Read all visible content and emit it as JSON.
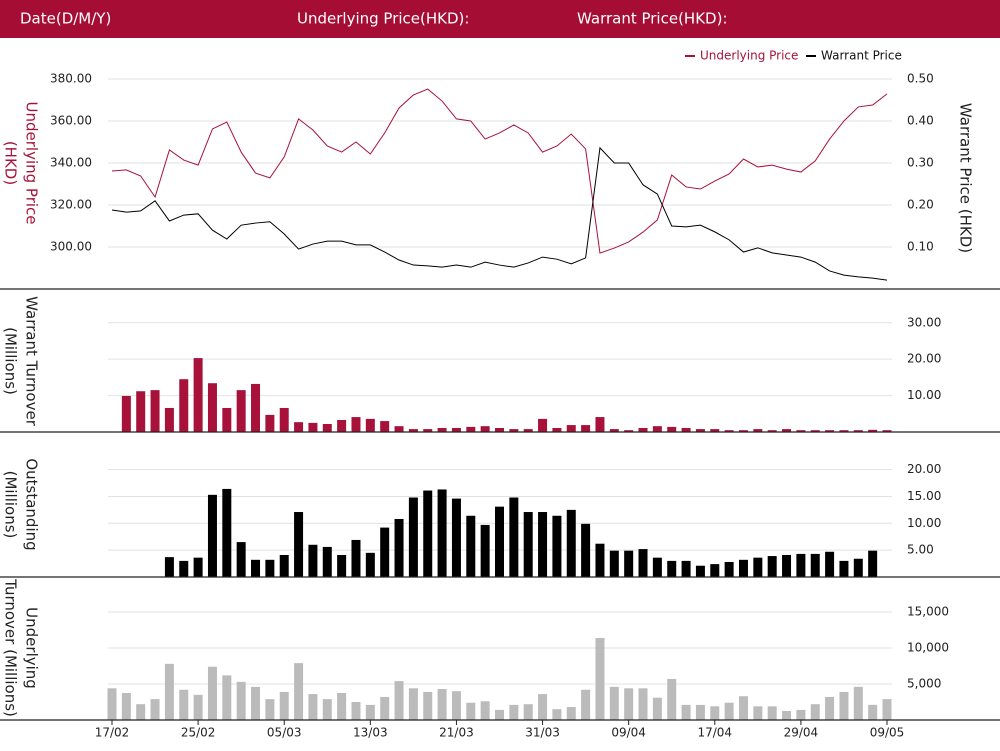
{
  "header": {
    "labels": [
      "Date(D/M/Y)",
      "Underlying Price(HKD):",
      "Warrant Price(HKD):"
    ]
  },
  "chart_data": [
    {
      "type": "line",
      "ylabel": [
        "Underlying Price",
        "(HKD)"
      ],
      "y2label": "Warrant  Price (HKD)",
      "legend": "top-right",
      "ylim": [
        280,
        400
      ],
      "yticks": [
        {
          "value": 300,
          "label": "300.00"
        },
        {
          "value": 320,
          "label": "320.00"
        },
        {
          "value": 340,
          "label": "340.00"
        },
        {
          "value": 360,
          "label": "360.00"
        },
        {
          "value": 380,
          "label": "380.00"
        }
      ],
      "y2lim": [
        0,
        0.6
      ],
      "y2ticks": [
        {
          "value": 0.1,
          "label": "0.10"
        },
        {
          "value": 0.2,
          "label": "0.20"
        },
        {
          "value": 0.3,
          "label": "0.30"
        },
        {
          "value": 0.4,
          "label": "0.40"
        },
        {
          "value": 0.5,
          "label": "0.50"
        }
      ],
      "grid": true,
      "series": [
        {
          "name": "Underlying Price",
          "color": "#a8123a",
          "axis": "y",
          "values": [
            336.2,
            336.7,
            333.8,
            323.8,
            346.2,
            341.4,
            339,
            356.2,
            359.5,
            345.2,
            335.2,
            332.9,
            342.9,
            361,
            355.7,
            348.1,
            345.2,
            350,
            344.3,
            354.3,
            366.2,
            372.4,
            375.2,
            369.5,
            361,
            360,
            351.4,
            354.3,
            358.1,
            354.3,
            345.2,
            348.1,
            353.8,
            346.7,
            297.1,
            299.5,
            302.4,
            307.1,
            312.9,
            334.3,
            328.6,
            327.6,
            331.4,
            334.8,
            341.9,
            338.1,
            339,
            337.1,
            335.7,
            341,
            351.4,
            360,
            366.7,
            367.6,
            372.9
          ]
        },
        {
          "name": "Warrant Price",
          "color": "#000000",
          "axis": "y2",
          "values": [
            0.188,
            0.183,
            0.186,
            0.21,
            0.162,
            0.176,
            0.179,
            0.14,
            0.119,
            0.152,
            0.157,
            0.16,
            0.131,
            0.095,
            0.107,
            0.114,
            0.114,
            0.105,
            0.105,
            0.088,
            0.069,
            0.057,
            0.055,
            0.052,
            0.057,
            0.052,
            0.064,
            0.057,
            0.052,
            0.062,
            0.076,
            0.071,
            0.06,
            0.074,
            0.336,
            0.3,
            0.3,
            0.248,
            0.226,
            0.15,
            0.148,
            0.152,
            0.136,
            0.117,
            0.088,
            0.098,
            0.086,
            0.081,
            0.076,
            0.064,
            0.043,
            0.033,
            0.029,
            0.026,
            0.021
          ]
        }
      ]
    },
    {
      "type": "bar",
      "ylabel": [
        "Warrant  Turnover",
        "(Millions)"
      ],
      "color": "#a8123a",
      "y_axis_side": "right",
      "ylim": [
        0,
        39
      ],
      "yticks": [
        {
          "value": 10,
          "label": "10.00"
        },
        {
          "value": 20,
          "label": "20.00"
        },
        {
          "value": 30,
          "label": "30.00"
        }
      ],
      "grid": true,
      "values": [
        null,
        9.9,
        11.2,
        11.5,
        6.6,
        14.5,
        20.3,
        13.4,
        6.6,
        11.5,
        13.2,
        4.7,
        6.6,
        2.7,
        2.5,
        2.2,
        3.3,
        4.1,
        3.6,
        3.0,
        1.6,
        0.8,
        0.8,
        1.1,
        1.1,
        1.4,
        1.6,
        1.1,
        0.8,
        0.8,
        3.6,
        1.1,
        1.9,
        1.9,
        4.1,
        0.8,
        0.5,
        1.1,
        1.6,
        1.4,
        1.1,
        0.8,
        0.8,
        0.5,
        0.5,
        0.8,
        0.5,
        0.8,
        0.5,
        0.5,
        0.5,
        0.5,
        0.5,
        0.6,
        0.5
      ]
    },
    {
      "type": "bar",
      "ylabel": [
        "Outstanding",
        "(Millions)"
      ],
      "color": "#000000",
      "y_axis_side": "right",
      "ylim": [
        0,
        27
      ],
      "yticks": [
        {
          "value": 5,
          "label": "5.00"
        },
        {
          "value": 10,
          "label": "10.00"
        },
        {
          "value": 15,
          "label": "15.00"
        },
        {
          "value": 20,
          "label": "20.00"
        }
      ],
      "grid": true,
      "values": [
        null,
        null,
        null,
        null,
        3.7,
        3.0,
        3.6,
        15.3,
        16.4,
        6.5,
        3.2,
        3.2,
        4.1,
        12.1,
        6.0,
        5.6,
        4.1,
        6.9,
        4.5,
        9.2,
        10.8,
        14.8,
        16.1,
        16.3,
        14.6,
        11.4,
        9.7,
        13.1,
        14.8,
        12.1,
        12.1,
        11.4,
        12.5,
        9.9,
        6.2,
        4.9,
        4.9,
        5.2,
        3.6,
        3.0,
        3.0,
        2.1,
        2.4,
        2.8,
        3.2,
        3.6,
        3.9,
        4.1,
        4.3,
        4.3,
        4.7,
        3.0,
        3.4,
        4.9,
        null
      ]
    },
    {
      "type": "bar",
      "ylabel": [
        "Underlying",
        "Turnover (Millions)"
      ],
      "color": "#bbbbbb",
      "y_axis_side": "right",
      "ylim": [
        0,
        20000
      ],
      "yticks": [
        {
          "value": 5000,
          "label": "5,000"
        },
        {
          "value": 10000,
          "label": "10,000"
        },
        {
          "value": 15000,
          "label": "15,000"
        }
      ],
      "grid": true,
      "categories": [
        "17/02",
        null,
        null,
        null,
        null,
        null,
        "25/02",
        null,
        null,
        null,
        null,
        null,
        "05/03",
        null,
        null,
        null,
        null,
        null,
        "13/03",
        null,
        null,
        null,
        null,
        null,
        "21/03",
        null,
        null,
        null,
        null,
        null,
        "31/03",
        null,
        null,
        null,
        null,
        null,
        "09/04",
        null,
        null,
        null,
        null,
        null,
        "17/04",
        null,
        null,
        null,
        null,
        null,
        "29/04",
        null,
        null,
        null,
        null,
        null,
        "09/05"
      ],
      "values": [
        4400,
        3750,
        2200,
        2900,
        7800,
        4200,
        3500,
        7400,
        6200,
        5300,
        4600,
        2900,
        3900,
        7900,
        3600,
        2900,
        3750,
        2500,
        2100,
        3200,
        5400,
        4400,
        3900,
        4300,
        4000,
        2400,
        2600,
        1400,
        2100,
        2200,
        3600,
        1500,
        1800,
        4200,
        11400,
        4600,
        4400,
        4400,
        3100,
        5700,
        2100,
        2100,
        1900,
        2400,
        3300,
        1900,
        1900,
        1250,
        1400,
        2200,
        3200,
        3900,
        4600,
        2100,
        2900
      ]
    }
  ]
}
